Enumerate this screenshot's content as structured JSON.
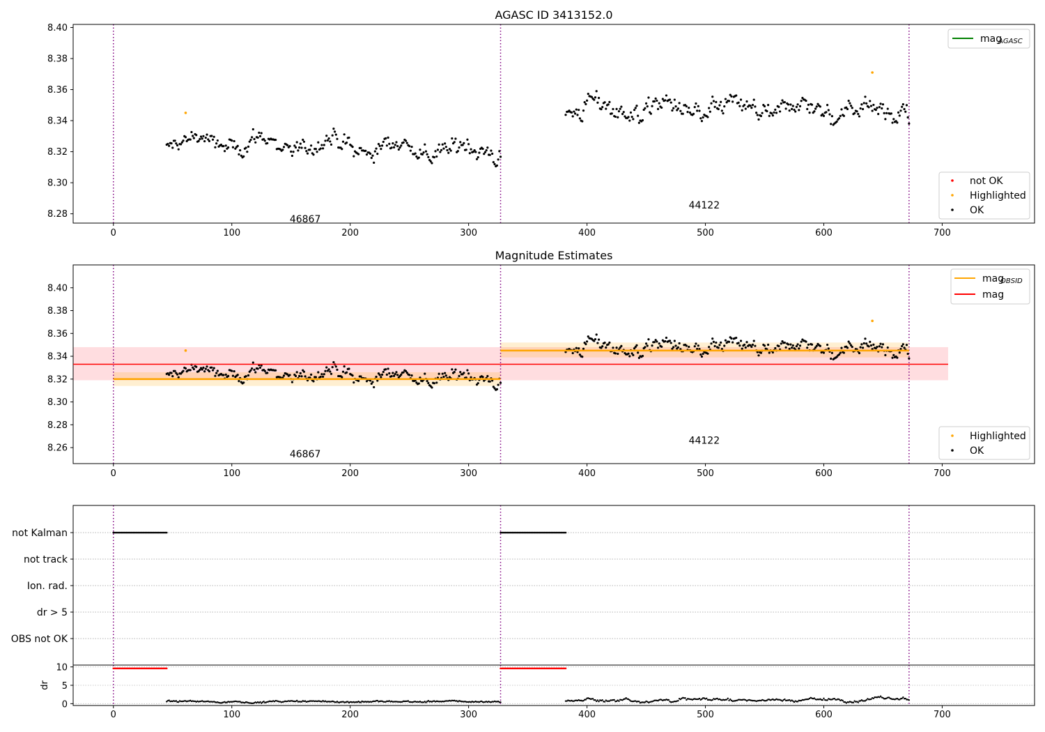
{
  "chart_data": [
    {
      "type": "scatter",
      "title": "AGASC ID 3413152.0",
      "xlim": [
        -34,
        778
      ],
      "ylim": [
        8.274,
        8.402
      ],
      "xticks": [
        0,
        100,
        200,
        300,
        400,
        500,
        600,
        700
      ],
      "yticks": [
        8.28,
        8.3,
        8.32,
        8.34,
        8.36,
        8.38,
        8.4
      ],
      "obs_boundaries": [
        0,
        327,
        672
      ],
      "obsids": [
        {
          "label": "46867",
          "x": 162,
          "y": 8.2745
        },
        {
          "label": "44122",
          "x": 499,
          "y": 8.2835
        }
      ],
      "legend_upper": [
        {
          "label": "mag",
          "sub": "AGASC",
          "color": "#008000",
          "kind": "line"
        }
      ],
      "legend_lower": [
        {
          "label": "not OK",
          "color": "#ff0000",
          "kind": "point"
        },
        {
          "label": "Highlighted",
          "color": "#ffa500",
          "kind": "point"
        },
        {
          "label": "OK",
          "color": "#000000",
          "kind": "point"
        }
      ],
      "highlighted_points": [
        {
          "x": 61,
          "y": 8.345
        },
        {
          "x": 641,
          "y": 8.371
        }
      ],
      "series_ok": {
        "segments": [
          {
            "x0": 45,
            "x1": 327,
            "mean": 8.3222,
            "start": 8.331,
            "end": 8.318,
            "noise": 0.0075
          },
          {
            "x0": 382,
            "x1": 672,
            "mean": 8.3445,
            "start": 8.351,
            "end": 8.35,
            "noise": 0.0085
          }
        ],
        "step": 1
      }
    },
    {
      "type": "scatter",
      "title": "Magnitude Estimates",
      "xlim": [
        -34,
        778
      ],
      "ylim": [
        8.246,
        8.42
      ],
      "xticks": [
        0,
        100,
        200,
        300,
        400,
        500,
        600,
        700
      ],
      "yticks": [
        8.26,
        8.28,
        8.3,
        8.32,
        8.34,
        8.36,
        8.38,
        8.4
      ],
      "obs_boundaries": [
        0,
        327,
        672
      ],
      "obsids": [
        {
          "label": "46867",
          "x": 162,
          "y": 8.2515
        },
        {
          "label": "44122",
          "x": 499,
          "y": 8.2635
        }
      ],
      "legend_upper": [
        {
          "label": "mag",
          "sub": "OBSID",
          "color": "#ffa500",
          "kind": "line"
        },
        {
          "label": "mag",
          "sub": "",
          "color": "#ff0000",
          "kind": "line"
        }
      ],
      "legend_lower": [
        {
          "label": "Highlighted",
          "color": "#ffa500",
          "kind": "point"
        },
        {
          "label": "OK",
          "color": "#000000",
          "kind": "point"
        }
      ],
      "mag_overall": {
        "x0": -34,
        "x1": 705,
        "value": 8.333,
        "band": [
          8.319,
          8.348
        ]
      },
      "mag_obsid": [
        {
          "x0": 0,
          "x1": 327,
          "value": 8.32,
          "band": [
            8.314,
            8.326
          ]
        },
        {
          "x0": 327,
          "x1": 672,
          "value": 8.345,
          "band": [
            8.339,
            8.352
          ]
        }
      ],
      "highlighted_points": [
        {
          "x": 61,
          "y": 8.345
        },
        {
          "x": 641,
          "y": 8.371
        }
      ]
    },
    {
      "type": "scatter",
      "ylabel": "dr",
      "xlim": [
        -34,
        778
      ],
      "xticks": [
        0,
        100,
        200,
        300,
        400,
        500,
        600,
        700
      ],
      "xtick_labels": [
        "0",
        "100",
        "200",
        "300",
        "400",
        "500",
        "600",
        "700"
      ],
      "obs_boundaries": [
        0,
        327,
        672
      ],
      "flag_rows": [
        "not Kalman",
        "not track",
        "Ion. rad.",
        "dr > 5",
        "OBS not OK"
      ],
      "not_kalman_ranges": [
        [
          0,
          45
        ],
        [
          327,
          382
        ]
      ],
      "dr_ylim": [
        -0.5,
        10.5
      ],
      "dr_yticks": [
        0,
        5,
        10
      ],
      "dr_high_ranges": [
        [
          0,
          45
        ],
        [
          327,
          382
        ]
      ],
      "dr_high_value": 9.6,
      "dr_segments": [
        {
          "x0": 45,
          "x1": 327,
          "base": 0.55,
          "amp": 0.35
        },
        {
          "x0": 382,
          "x1": 672,
          "base": 1.1,
          "amp": 0.9
        }
      ]
    }
  ]
}
